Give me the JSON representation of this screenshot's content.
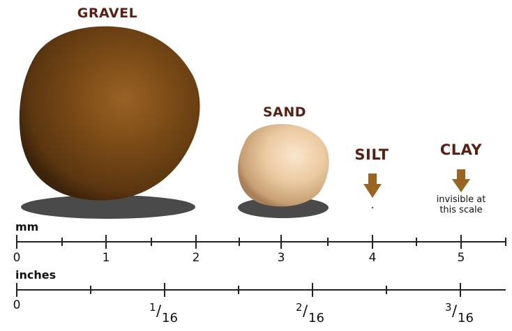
{
  "particles": {
    "gravel": "GRAVEL",
    "sand": "SAND",
    "silt": "SILT",
    "clay": "CLAY"
  },
  "clay_note": {
    "line1": "invisible at",
    "line2": "this scale"
  },
  "scales": {
    "mm": {
      "unit": "mm",
      "labels": [
        "0",
        "1",
        "2",
        "3",
        "4",
        "5"
      ]
    },
    "inches": {
      "unit": "inches",
      "zero": "0",
      "fractions": [
        {
          "num": "1",
          "den": "16"
        },
        {
          "num": "2",
          "den": "16"
        },
        {
          "num": "3",
          "den": "16"
        }
      ]
    }
  },
  "colors": {
    "label": "#5a1f12",
    "arrow": "#9a6521",
    "gravel": "#6e4112",
    "sand": "#e6c9a4",
    "shadow": "#4a4a4a"
  },
  "icons": {
    "silt_arrow": "down-arrow-icon",
    "clay_arrow": "down-arrow-icon"
  }
}
